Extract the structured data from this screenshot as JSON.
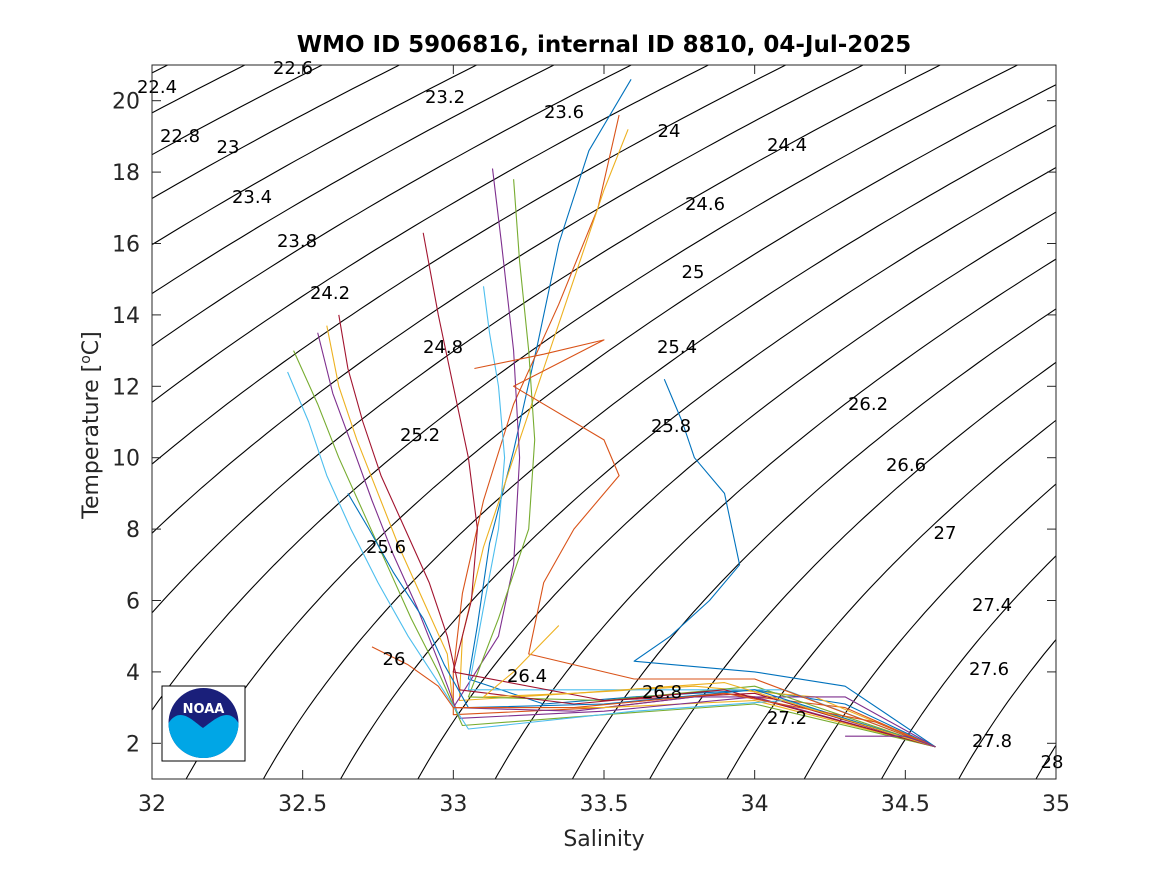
{
  "colors": {
    "profiles": [
      "#0072BD",
      "#D95319",
      "#EDB120",
      "#7E2F8E",
      "#77AC30",
      "#4DBEEE",
      "#A2142F"
    ],
    "noaa_dark": "#1a1f7a",
    "noaa_light": "#00a6e6"
  },
  "logo": {
    "text": "NOAA"
  },
  "chart_data": {
    "type": "line",
    "title": "WMO ID 5906816, internal ID 8810, 04-Jul-2025",
    "xlabel": "Salinity",
    "ylabel": "Temperature [°C]",
    "xlim": [
      32,
      35
    ],
    "ylim": [
      1,
      21
    ],
    "xticks": [
      "32",
      "32.5",
      "33",
      "33.5",
      "34",
      "34.5",
      "35"
    ],
    "yticks": [
      "2",
      "4",
      "6",
      "8",
      "10",
      "12",
      "14",
      "16",
      "18",
      "20"
    ],
    "grid": false,
    "density_contours": [
      {
        "label": "22.4",
        "sigma": 22.4
      },
      {
        "label": "22.6",
        "sigma": 22.6
      },
      {
        "label": "22.8",
        "sigma": 22.8
      },
      {
        "label": "23",
        "sigma": 23.0
      },
      {
        "label": "23.2",
        "sigma": 23.2
      },
      {
        "label": "23.4",
        "sigma": 23.4
      },
      {
        "label": "23.6",
        "sigma": 23.6
      },
      {
        "label": "23.8",
        "sigma": 23.8
      },
      {
        "label": "24",
        "sigma": 24.0
      },
      {
        "label": "24.2",
        "sigma": 24.2
      },
      {
        "label": "24.4",
        "sigma": 24.4
      },
      {
        "label": "24.6",
        "sigma": 24.6
      },
      {
        "label": "24.8",
        "sigma": 24.8
      },
      {
        "label": "25",
        "sigma": 25.0
      },
      {
        "label": "25.2",
        "sigma": 25.2
      },
      {
        "label": "25.4",
        "sigma": 25.4
      },
      {
        "label": "25.6",
        "sigma": 25.6
      },
      {
        "label": "25.8",
        "sigma": 25.8
      },
      {
        "label": "26",
        "sigma": 26.0
      },
      {
        "label": "26.2",
        "sigma": 26.2
      },
      {
        "label": "26.4",
        "sigma": 26.4
      },
      {
        "label": "26.6",
        "sigma": 26.6
      },
      {
        "label": "26.8",
        "sigma": 26.8
      },
      {
        "label": "27",
        "sigma": 27.0
      },
      {
        "label": "27.2",
        "sigma": 27.2
      },
      {
        "label": "27.4",
        "sigma": 27.4
      },
      {
        "label": "27.6",
        "sigma": 27.6
      },
      {
        "label": "27.8",
        "sigma": 27.8
      },
      {
        "label": "28",
        "sigma": 28.0
      }
    ],
    "series": [
      {
        "values": [
          [
            33.59,
            20.6
          ],
          [
            33.45,
            18.6
          ],
          [
            33.35,
            16.0
          ],
          [
            33.28,
            13.2
          ],
          [
            33.2,
            10.2
          ],
          [
            33.12,
            7.6
          ],
          [
            33.08,
            5.3
          ],
          [
            33.05,
            3.8
          ],
          [
            33.3,
            3.1
          ],
          [
            33.6,
            3.3
          ],
          [
            34.0,
            3.5
          ],
          [
            34.3,
            3.1
          ],
          [
            34.6,
            1.9
          ]
        ]
      },
      {
        "values": [
          [
            33.55,
            19.6
          ],
          [
            33.48,
            17.0
          ],
          [
            33.35,
            14.3
          ],
          [
            33.2,
            11.5
          ],
          [
            33.1,
            8.8
          ],
          [
            33.03,
            6.2
          ],
          [
            33.0,
            4.0
          ],
          [
            33.0,
            2.8
          ],
          [
            33.5,
            3.0
          ],
          [
            33.9,
            3.4
          ],
          [
            34.3,
            3.0
          ],
          [
            34.6,
            1.9
          ]
        ]
      },
      {
        "values": [
          [
            33.58,
            19.2
          ],
          [
            33.5,
            17.5
          ],
          [
            33.4,
            15.0
          ],
          [
            33.3,
            12.5
          ],
          [
            33.2,
            10.0
          ],
          [
            33.1,
            7.5
          ],
          [
            33.03,
            5.0
          ],
          [
            33.02,
            3.2
          ],
          [
            33.4,
            3.4
          ],
          [
            33.8,
            3.6
          ],
          [
            34.2,
            3.3
          ],
          [
            34.6,
            1.9
          ]
        ]
      },
      {
        "values": [
          [
            33.13,
            18.1
          ],
          [
            33.16,
            16.0
          ],
          [
            33.2,
            13.0
          ],
          [
            33.22,
            10.0
          ],
          [
            33.2,
            7.0
          ],
          [
            33.15,
            5.0
          ],
          [
            33.0,
            3.0
          ],
          [
            33.4,
            2.9
          ],
          [
            33.8,
            3.3
          ],
          [
            34.3,
            3.3
          ],
          [
            34.6,
            1.9
          ]
        ]
      },
      {
        "values": [
          [
            33.2,
            17.8
          ],
          [
            33.22,
            15.5
          ],
          [
            33.25,
            13.0
          ],
          [
            33.27,
            10.5
          ],
          [
            33.25,
            8.0
          ],
          [
            33.15,
            5.5
          ],
          [
            33.05,
            3.3
          ],
          [
            33.5,
            3.2
          ],
          [
            34.0,
            3.6
          ],
          [
            34.6,
            1.9
          ]
        ]
      },
      {
        "values": [
          [
            33.1,
            14.8
          ],
          [
            33.12,
            13.5
          ],
          [
            33.15,
            12.0
          ],
          [
            33.17,
            10.0
          ],
          [
            33.15,
            8.0
          ],
          [
            33.1,
            5.8
          ],
          [
            33.05,
            3.5
          ],
          [
            33.6,
            3.5
          ],
          [
            34.1,
            3.5
          ],
          [
            34.6,
            1.9
          ]
        ]
      },
      {
        "values": [
          [
            32.9,
            16.3
          ],
          [
            32.95,
            14.0
          ],
          [
            33.0,
            12.0
          ],
          [
            33.05,
            10.0
          ],
          [
            33.08,
            8.0
          ],
          [
            33.06,
            6.0
          ],
          [
            33.0,
            4.0
          ],
          [
            33.5,
            3.2
          ],
          [
            34.0,
            3.4
          ],
          [
            34.6,
            1.9
          ]
        ]
      },
      {
        "values": [
          [
            33.7,
            12.2
          ],
          [
            33.76,
            11.0
          ],
          [
            33.8,
            10.0
          ],
          [
            33.9,
            9.0
          ],
          [
            33.95,
            7.0
          ],
          [
            33.85,
            6.0
          ],
          [
            33.72,
            5.0
          ],
          [
            33.6,
            4.3
          ],
          [
            34.0,
            4.0
          ],
          [
            34.3,
            3.6
          ],
          [
            34.6,
            1.9
          ]
        ]
      },
      {
        "values": [
          [
            33.07,
            12.5
          ],
          [
            33.3,
            12.9
          ],
          [
            33.5,
            13.3
          ],
          [
            33.2,
            12.0
          ],
          [
            33.5,
            10.5
          ],
          [
            33.55,
            9.5
          ],
          [
            33.4,
            8.0
          ],
          [
            33.3,
            6.5
          ],
          [
            33.25,
            4.5
          ],
          [
            33.6,
            3.8
          ],
          [
            34.0,
            3.8
          ],
          [
            34.6,
            1.9
          ]
        ]
      },
      {
        "values": [
          [
            32.58,
            13.7
          ],
          [
            32.62,
            12.0
          ],
          [
            32.68,
            10.5
          ],
          [
            32.75,
            9.0
          ],
          [
            32.82,
            7.5
          ],
          [
            32.9,
            6.0
          ],
          [
            32.98,
            4.5
          ],
          [
            33.0,
            3.0
          ],
          [
            33.5,
            3.0
          ],
          [
            34.0,
            3.2
          ],
          [
            34.6,
            1.9
          ]
        ]
      },
      {
        "values": [
          [
            32.55,
            13.5
          ],
          [
            32.6,
            11.8
          ],
          [
            32.67,
            10.2
          ],
          [
            32.73,
            8.8
          ],
          [
            32.8,
            7.3
          ],
          [
            32.88,
            5.8
          ],
          [
            32.95,
            4.3
          ],
          [
            33.02,
            2.7
          ],
          [
            33.5,
            2.9
          ],
          [
            34.0,
            3.3
          ],
          [
            34.6,
            1.9
          ]
        ]
      },
      {
        "values": [
          [
            32.47,
            13.0
          ],
          [
            32.55,
            11.5
          ],
          [
            32.62,
            10.0
          ],
          [
            32.7,
            8.5
          ],
          [
            32.78,
            7.0
          ],
          [
            32.86,
            5.5
          ],
          [
            32.95,
            4.0
          ],
          [
            33.03,
            2.5
          ],
          [
            33.5,
            2.8
          ],
          [
            34.0,
            3.1
          ],
          [
            34.6,
            1.9
          ]
        ]
      },
      {
        "values": [
          [
            32.45,
            12.4
          ],
          [
            32.52,
            11.0
          ],
          [
            32.58,
            9.5
          ],
          [
            32.66,
            8.0
          ],
          [
            32.75,
            6.5
          ],
          [
            32.85,
            5.0
          ],
          [
            32.95,
            3.7
          ],
          [
            33.05,
            2.4
          ],
          [
            33.6,
            2.9
          ],
          [
            34.1,
            3.2
          ],
          [
            34.6,
            1.9
          ]
        ]
      },
      {
        "values": [
          [
            32.62,
            14.0
          ],
          [
            32.65,
            12.5
          ],
          [
            32.7,
            11.0
          ],
          [
            32.76,
            9.5
          ],
          [
            32.84,
            8.0
          ],
          [
            32.92,
            6.5
          ],
          [
            32.98,
            5.0
          ],
          [
            33.02,
            3.5
          ],
          [
            33.4,
            3.1
          ],
          [
            33.9,
            3.5
          ],
          [
            34.6,
            1.9
          ]
        ]
      },
      {
        "values": [
          [
            32.65,
            9.0
          ],
          [
            32.72,
            8.0
          ],
          [
            32.8,
            6.8
          ],
          [
            32.9,
            5.5
          ],
          [
            32.97,
            4.2
          ],
          [
            33.05,
            3.0
          ],
          [
            33.5,
            3.1
          ],
          [
            34.0,
            3.5
          ],
          [
            34.6,
            1.9
          ]
        ]
      },
      {
        "values": [
          [
            32.73,
            4.7
          ],
          [
            32.85,
            4.2
          ],
          [
            32.95,
            3.6
          ],
          [
            33.0,
            3.0
          ],
          [
            33.4,
            3.0
          ],
          [
            33.9,
            3.4
          ],
          [
            34.4,
            2.6
          ],
          [
            34.6,
            1.9
          ]
        ]
      },
      {
        "values": [
          [
            33.35,
            5.3
          ],
          [
            33.2,
            4.0
          ],
          [
            33.1,
            3.3
          ],
          [
            33.4,
            3.4
          ],
          [
            33.9,
            3.7
          ],
          [
            34.6,
            1.9
          ]
        ]
      },
      {
        "values": [
          [
            34.3,
            2.2
          ],
          [
            34.5,
            2.2
          ],
          [
            34.6,
            1.9
          ]
        ]
      }
    ]
  }
}
